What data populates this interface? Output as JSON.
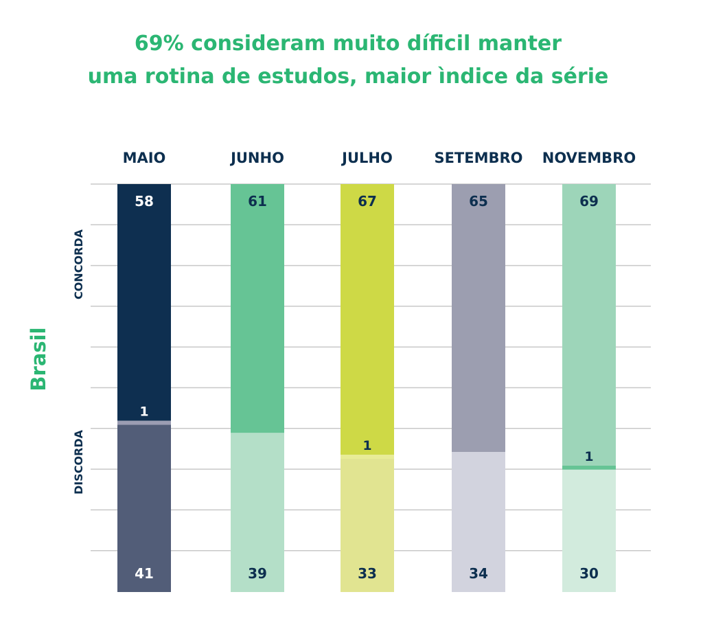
{
  "chart_data": {
    "type": "bar",
    "stacked": true,
    "title_line1": "69% consideram muito díficil manter",
    "title_line2": "uma rotina de estudos, maior ìndice da série",
    "side_label": "Brasil",
    "categories": [
      "MAIO",
      "JUNHO",
      "JULHO",
      "SETEMBRO",
      "NOVEMBRO"
    ],
    "group_labels": {
      "top": "CONCORDA",
      "bottom": "DISCORDA"
    },
    "series": [
      {
        "values": [
          58,
          61,
          67,
          65,
          69
        ]
      },
      {
        "values": [
          1,
          0,
          1,
          0,
          1
        ]
      },
      {
        "values": [
          41,
          39,
          33,
          34,
          30
        ]
      }
    ],
    "ylim": [
      0,
      100
    ],
    "grid": true,
    "colors": {
      "title": "#2bb673",
      "side_label": "#2bb673",
      "text_dark": "#0d2f4f",
      "grid": "#c8c8c8",
      "bars": [
        {
          "top": "#0e2f50",
          "mid": "#9b9db3",
          "bottom": "#525d78",
          "top_text": "#ffffff",
          "mid_text": "#ffffff",
          "bottom_text": "#ffffff"
        },
        {
          "top": "#66c495",
          "mid": "#b4dfc8",
          "bottom": "#b4dfc8",
          "top_text": "#0d2f4f",
          "mid_text": "#0d2f4f",
          "bottom_text": "#0d2f4f"
        },
        {
          "top": "#ced946",
          "mid": "#e8ec96",
          "bottom": "#e1e491",
          "top_text": "#0d2f4f",
          "mid_text": "#0d2f4f",
          "bottom_text": "#0d2f4f"
        },
        {
          "top": "#9c9eb0",
          "mid": "#d2d3de",
          "bottom": "#d2d3de",
          "top_text": "#0d2f4f",
          "mid_text": "#0d2f4f",
          "bottom_text": "#0d2f4f"
        },
        {
          "top": "#9dd5b9",
          "mid": "#66c495",
          "bottom": "#d2ebdd",
          "top_text": "#0d2f4f",
          "mid_text": "#0d2f4f",
          "bottom_text": "#0d2f4f"
        }
      ]
    }
  }
}
